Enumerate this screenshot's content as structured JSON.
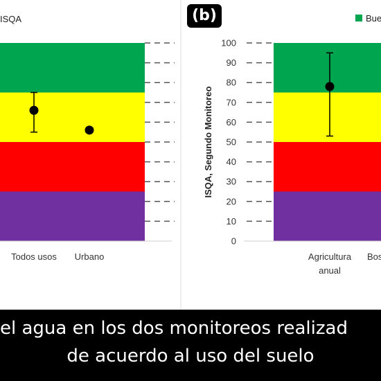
{
  "panel_label": "(b)",
  "caption": {
    "line1": "el agua en los dos monitoreos realizad",
    "line2": "de acuerdo al uso del suelo"
  },
  "colors": {
    "good": "#00a550",
    "fair": "#ffff00",
    "poor": "#ff0000",
    "very_poor": "#7030a0"
  },
  "chart_data": [
    {
      "type": "scatter",
      "title": "",
      "legend_partial": "ISQA",
      "xlabel": "",
      "ylabel": "",
      "ylim": [
        0,
        100
      ],
      "bands": [
        {
          "from": 75,
          "to": 100,
          "color": "#00a550"
        },
        {
          "from": 50,
          "to": 75,
          "color": "#ffff00"
        },
        {
          "from": 25,
          "to": 50,
          "color": "#ff0000"
        },
        {
          "from": 0,
          "to": 25,
          "color": "#7030a0"
        }
      ],
      "categories": [
        "Todos usos",
        "Urbano"
      ],
      "points": [
        {
          "category": "Todos usos",
          "value": 66,
          "err_low": 55,
          "err_high": 75
        },
        {
          "category": "Urbano",
          "value": 56
        }
      ]
    },
    {
      "type": "scatter",
      "title": "",
      "legend_partial": "Bue",
      "xlabel": "",
      "ylabel": "ISQA, Segundo Monitoreo",
      "ylim": [
        0,
        100
      ],
      "yticks": [
        0,
        10,
        20,
        30,
        40,
        50,
        60,
        70,
        80,
        90,
        100
      ],
      "bands": [
        {
          "from": 75,
          "to": 100,
          "color": "#00a550"
        },
        {
          "from": 50,
          "to": 75,
          "color": "#ffff00"
        },
        {
          "from": 25,
          "to": 50,
          "color": "#ff0000"
        },
        {
          "from": 0,
          "to": 25,
          "color": "#7030a0"
        }
      ],
      "categories": [
        [
          "Agricultura",
          "anual"
        ],
        [
          "Bos"
        ]
      ],
      "points": [
        {
          "category": "Agricultura anual",
          "value": 78,
          "err_low": 53,
          "err_high": 95
        }
      ]
    }
  ]
}
